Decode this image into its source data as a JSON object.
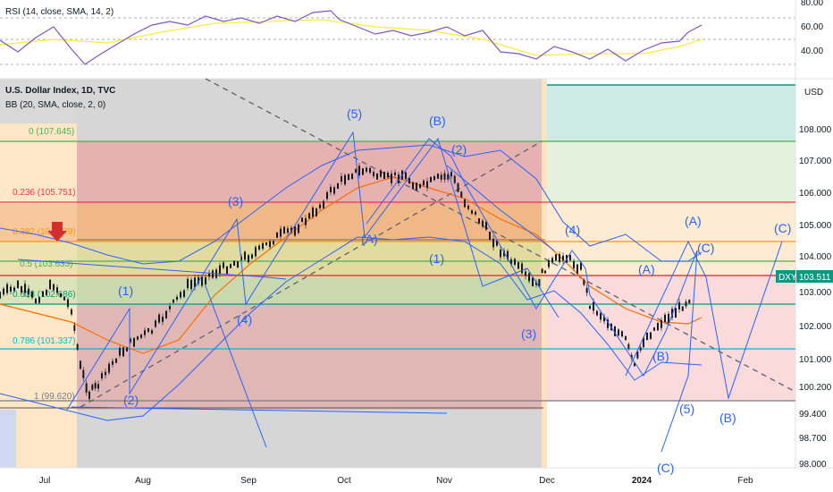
{
  "rsi_header": "RSI (14, close, SMA, 14, 2)",
  "main_header": "U.S. Dollar Index, 1D, TVC",
  "bb_header": "BB (20, SMA, close, 2, 0)",
  "currency": "USD",
  "symbol": "DXY",
  "last_price": "103.511",
  "rsi_axis": [
    "80.00",
    "60.00",
    "40.00"
  ],
  "price_axis": [
    "108.000",
    "107.000",
    "106.000",
    "105.000",
    "104.000",
    "103.000",
    "102.000",
    "101.000",
    "100.200",
    "99.400",
    "98.700",
    "98.000"
  ],
  "months": [
    "Jul",
    "Aug",
    "Sep",
    "Oct",
    "Nov",
    "Dec",
    "2024",
    "Feb"
  ],
  "fib_levels": [
    {
      "label": "0 (107.645)",
      "color": "#4caf50"
    },
    {
      "label": "0.236 (105.751)",
      "color": "#f23645"
    },
    {
      "label": "0.382 (104.579)",
      "color": "#ff9800"
    },
    {
      "label": "0.5 (103.633)",
      "color": "#4caf50"
    },
    {
      "label": "0.618 (102.686)",
      "color": "#089981"
    },
    {
      "label": "0.786 (101.337)",
      "color": "#00bcd4"
    },
    {
      "label": "1 (99.620)",
      "color": "#787b86"
    }
  ],
  "wave_labels": [
    "(1)",
    "(2)",
    "(3)",
    "(4)",
    "(5)",
    "(A)",
    "(B)",
    "(1)",
    "(2)",
    "(3)",
    "(4)",
    "(A)",
    "(B)",
    "(A)",
    "(C)",
    "(5)",
    "(B)",
    "(C)",
    "(C)"
  ],
  "colors": {
    "wave": "#2962ff",
    "price_line": "#f23645",
    "rsi": "#7e57c2",
    "rsi_ma": "#ffeb3b",
    "bb_mid": "#ff6d00",
    "bb_band": "#2962ff",
    "candles": "#131722"
  }
}
